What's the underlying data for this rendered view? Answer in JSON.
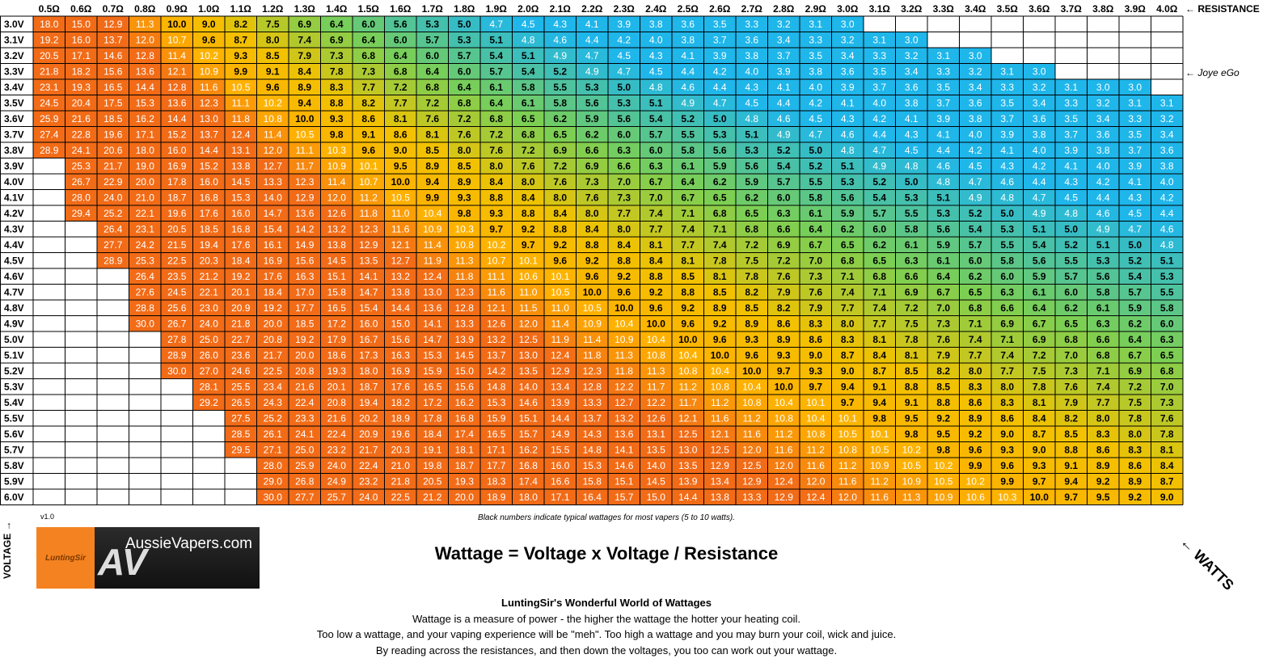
{
  "chart_data": {
    "type": "heatmap",
    "x_label": "RESISTANCE",
    "y_label": "VOLTAGE",
    "value_label": "WATTS",
    "x_categories": [
      "0.5Ω",
      "0.6Ω",
      "0.7Ω",
      "0.8Ω",
      "0.9Ω",
      "1.0Ω",
      "1.1Ω",
      "1.2Ω",
      "1.3Ω",
      "1.4Ω",
      "1.5Ω",
      "1.6Ω",
      "1.7Ω",
      "1.8Ω",
      "1.9Ω",
      "2.0Ω",
      "2.1Ω",
      "2.2Ω",
      "2.3Ω",
      "2.4Ω",
      "2.5Ω",
      "2.6Ω",
      "2.7Ω",
      "2.8Ω",
      "2.9Ω",
      "3.0Ω",
      "3.1Ω",
      "3.2Ω",
      "3.3Ω",
      "3.4Ω",
      "3.5Ω",
      "3.6Ω",
      "3.7Ω",
      "3.8Ω",
      "3.9Ω",
      "4.0Ω"
    ],
    "y_categories": [
      "3.0V",
      "3.1V",
      "3.2V",
      "3.3V",
      "3.4V",
      "3.5V",
      "3.6V",
      "3.7V",
      "3.8V",
      "3.9V",
      "4.0V",
      "4.1V",
      "4.2V",
      "4.3V",
      "4.4V",
      "4.5V",
      "4.6V",
      "4.7V",
      "4.8V",
      "4.9V",
      "5.0V",
      "5.1V",
      "5.2V",
      "5.3V",
      "5.4V",
      "5.5V",
      "5.6V",
      "5.7V",
      "5.8V",
      "5.9V",
      "6.0V"
    ],
    "resistances": [
      0.5,
      0.6,
      0.7,
      0.8,
      0.9,
      1.0,
      1.1,
      1.2,
      1.3,
      1.4,
      1.5,
      1.6,
      1.7,
      1.8,
      1.9,
      2.0,
      2.1,
      2.2,
      2.3,
      2.4,
      2.5,
      2.6,
      2.7,
      2.8,
      2.9,
      3.0,
      3.1,
      3.2,
      3.3,
      3.4,
      3.5,
      3.6,
      3.7,
      3.8,
      3.9,
      4.0
    ],
    "voltages": [
      3.0,
      3.1,
      3.2,
      3.3,
      3.4,
      3.5,
      3.6,
      3.7,
      3.8,
      3.9,
      4.0,
      4.1,
      4.2,
      4.3,
      4.4,
      4.5,
      4.6,
      4.7,
      4.8,
      4.9,
      5.0,
      5.1,
      5.2,
      5.3,
      5.4,
      5.5,
      5.6,
      5.7,
      5.8,
      5.9,
      6.0
    ],
    "cell_rule": "wattage = voltage × voltage / resistance, rounded to 1 decimal; cells with wattage above 30 or below 3 are blank",
    "visible_range": [
      3.0,
      30.0
    ],
    "bold_range": [
      5,
      10
    ],
    "color_scale": {
      "high": "#f26b17",
      "mid_orange": "#ffb000",
      "mid_yellow": "#f2c200",
      "mid_green": "#7ccf52",
      "low": "#1fb6ea"
    }
  },
  "annotations": {
    "resistance": "← RESISTANCE",
    "joye": "← Joye eGo",
    "voltage": "VOLTAGE →",
    "watts": "← WATTS",
    "version": "v1.0",
    "note": "Black numbers indicate typical wattages  for most vapers (5 to 10 watts)."
  },
  "logo": {
    "left_text": "LuntingSir",
    "brand": "AussieVapers.com",
    "monogram": "AV"
  },
  "formula": "Wattage = Voltage x Voltage / Resistance",
  "footer": {
    "title": "LuntingSir's Wonderful World of Wattages",
    "line1": "Wattage is a measure of power - the higher the wattage the hotter your heating coil.",
    "line2": "Too low a wattage, and your vaping experience will be \"meh\". Too high a wattage and you may burn your coil, wick and juice.",
    "line3": "By reading across the resistances, and then down the voltages, you too can work out your wattage."
  }
}
